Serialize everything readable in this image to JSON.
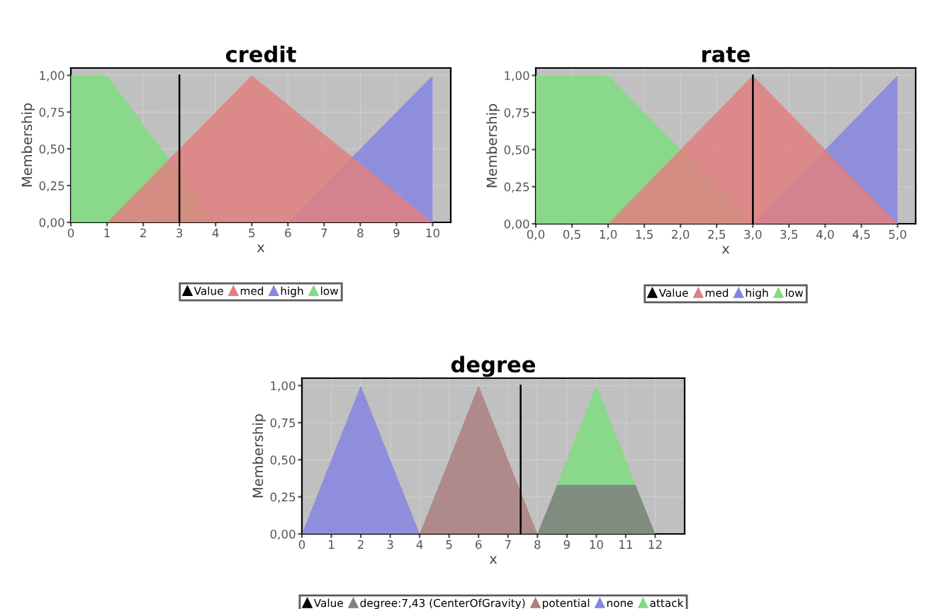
{
  "chart_data": [
    {
      "type": "area",
      "title": "credit",
      "xlabel": "x",
      "ylabel": "Membership",
      "xlim": [
        0,
        10.5
      ],
      "ylim": [
        0,
        1.05
      ],
      "xticks": [
        0,
        1,
        2,
        3,
        4,
        5,
        6,
        7,
        8,
        9,
        10
      ],
      "yticks": [
        {
          "value": 0,
          "label": "0,00"
        },
        {
          "value": 0.25,
          "label": "0,25"
        },
        {
          "value": 0.5,
          "label": "0,50"
        },
        {
          "value": 0.75,
          "label": "0,75"
        },
        {
          "value": 1,
          "label": "1,00"
        }
      ],
      "grid": true,
      "legend": "bottom",
      "series": [
        {
          "name": "Value",
          "type": "line",
          "color": "#000000",
          "x": [
            3,
            3
          ],
          "values": [
            0,
            1
          ]
        },
        {
          "name": "med",
          "color": "#e0807f",
          "x": [
            1,
            5,
            10
          ],
          "values": [
            0,
            1,
            0
          ]
        },
        {
          "name": "high",
          "color": "#8585e0",
          "x": [
            6,
            10
          ],
          "values": [
            0,
            1
          ]
        },
        {
          "name": "low",
          "color": "#80dc80",
          "x": [
            0,
            1,
            4
          ],
          "values": [
            1,
            1,
            0
          ]
        }
      ]
    },
    {
      "type": "area",
      "title": "rate",
      "xlabel": "x",
      "ylabel": "Membership",
      "xlim": [
        0,
        5.25
      ],
      "ylim": [
        0,
        1.05
      ],
      "xticks": [
        {
          "value": 0,
          "label": "0,0"
        },
        {
          "value": 0.5,
          "label": "0,5"
        },
        {
          "value": 1,
          "label": "1,0"
        },
        {
          "value": 1.5,
          "label": "1,5"
        },
        {
          "value": 2,
          "label": "2,0"
        },
        {
          "value": 2.5,
          "label": "2,5"
        },
        {
          "value": 3,
          "label": "3,0"
        },
        {
          "value": 3.5,
          "label": "3,5"
        },
        {
          "value": 4,
          "label": "4,0"
        },
        {
          "value": 4.5,
          "label": "4,5"
        },
        {
          "value": 5,
          "label": "5,0"
        }
      ],
      "yticks": [
        {
          "value": 0,
          "label": "0,00"
        },
        {
          "value": 0.25,
          "label": "0,25"
        },
        {
          "value": 0.5,
          "label": "0,50"
        },
        {
          "value": 0.75,
          "label": "0,75"
        },
        {
          "value": 1,
          "label": "1,00"
        }
      ],
      "grid": true,
      "legend": "bottom",
      "series": [
        {
          "name": "Value",
          "type": "line",
          "color": "#000000",
          "x": [
            3,
            3
          ],
          "values": [
            0,
            1
          ]
        },
        {
          "name": "med",
          "color": "#e0807f",
          "x": [
            1,
            3,
            5
          ],
          "values": [
            0,
            1,
            0
          ]
        },
        {
          "name": "high",
          "color": "#8585e0",
          "x": [
            3,
            5
          ],
          "values": [
            0,
            1
          ]
        },
        {
          "name": "low",
          "color": "#80dc80",
          "x": [
            0,
            1,
            3
          ],
          "values": [
            1,
            1,
            0
          ]
        }
      ]
    },
    {
      "type": "area",
      "title": "degree",
      "xlabel": "x",
      "ylabel": "Membership",
      "xlim": [
        0,
        13
      ],
      "ylim": [
        0,
        1.05
      ],
      "xticks": [
        0,
        1,
        2,
        3,
        4,
        5,
        6,
        7,
        8,
        9,
        10,
        11,
        12
      ],
      "yticks": [
        {
          "value": 0,
          "label": "0,00"
        },
        {
          "value": 0.25,
          "label": "0,25"
        },
        {
          "value": 0.5,
          "label": "0,50"
        },
        {
          "value": 0.75,
          "label": "0,75"
        },
        {
          "value": 1,
          "label": "1,00"
        }
      ],
      "grid": true,
      "legend": "bottom",
      "series": [
        {
          "name": "Value",
          "type": "line",
          "color": "#000000",
          "x": [
            7.43,
            7.43
          ],
          "values": [
            0,
            1
          ]
        },
        {
          "name": "degree:7,43 (CenterOfGravity)",
          "color": "#7f7f7f",
          "x": [
            8,
            8.67,
            11.33,
            12
          ],
          "values": [
            0,
            0.33,
            0.33,
            0
          ]
        },
        {
          "name": "potential",
          "color": "#ab8080",
          "x": [
            4,
            6,
            8
          ],
          "values": [
            0,
            1,
            0
          ]
        },
        {
          "name": "none",
          "color": "#8585e0",
          "x": [
            0,
            2,
            4
          ],
          "values": [
            0,
            1,
            0
          ]
        },
        {
          "name": "attack",
          "color": "#80dc80",
          "x": [
            8,
            10,
            12
          ],
          "values": [
            0,
            1,
            0
          ]
        }
      ]
    }
  ]
}
